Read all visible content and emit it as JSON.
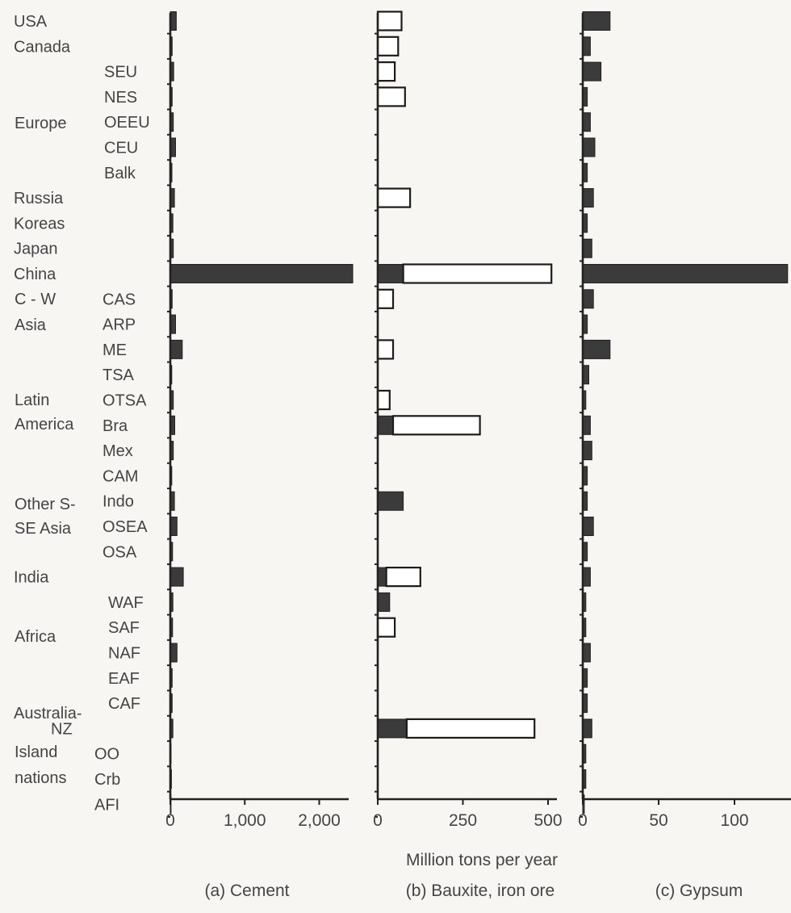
{
  "chart_data": [
    {
      "type": "bar",
      "orientation": "horizontal",
      "title": "(a) Cement",
      "xlim": [
        0,
        2450
      ],
      "xticks": [
        "0",
        "1,000",
        "2,000"
      ],
      "xtick_values": [
        0,
        1000,
        2000
      ],
      "categories": [
        "USA",
        "Canada",
        "SEU",
        "NES",
        "OEEU",
        "CEU",
        "Balk",
        "Russia",
        "Koreas",
        "Japan",
        "China",
        "CAS",
        "ARP",
        "ME",
        "TSA",
        "OTSA",
        "Bra",
        "Mex",
        "CAM",
        "Indo",
        "OSEA",
        "OSA",
        "India",
        "WAF",
        "SAF",
        "NAF",
        "EAF",
        "CAF",
        "NZ",
        "OO",
        "Crb",
        "AFI"
      ],
      "series": [
        {
          "style": "filled",
          "values": [
            80,
            25,
            45,
            25,
            40,
            70,
            22,
            55,
            35,
            40,
            2450,
            25,
            70,
            160,
            20,
            40,
            60,
            40,
            20,
            55,
            90,
            30,
            175,
            35,
            30,
            90,
            25,
            25,
            35,
            10,
            15,
            10
          ]
        }
      ],
      "grid": false
    },
    {
      "type": "bar",
      "orientation": "horizontal",
      "title": "(b) Bauxite, iron ore",
      "xlim": [
        0,
        510
      ],
      "xticks": [
        "0",
        "250",
        "500"
      ],
      "xtick_values": [
        0,
        250,
        500
      ],
      "categories": [
        "USA",
        "Canada",
        "SEU",
        "NES",
        "OEEU",
        "CEU",
        "Balk",
        "Russia",
        "Koreas",
        "Japan",
        "China",
        "CAS",
        "ARP",
        "ME",
        "TSA",
        "OTSA",
        "Bra",
        "Mex",
        "CAM",
        "Indo",
        "OSEA",
        "OSA",
        "India",
        "WAF",
        "SAF",
        "NAF",
        "EAF",
        "CAF",
        "NZ",
        "OO",
        "Crb",
        "AFI"
      ],
      "series": [
        {
          "name": "Bauxite",
          "style": "filled",
          "values": [
            0,
            0,
            0,
            0,
            0,
            0,
            0,
            0,
            0,
            0,
            75,
            0,
            0,
            0,
            0,
            0,
            45,
            0,
            0,
            75,
            0,
            0,
            25,
            35,
            0,
            0,
            0,
            0,
            85,
            0,
            0,
            0
          ]
        },
        {
          "name": "Iron ore",
          "style": "open",
          "values": [
            70,
            60,
            50,
            80,
            0,
            0,
            0,
            95,
            0,
            0,
            435,
            45,
            0,
            45,
            0,
            35,
            255,
            0,
            0,
            0,
            0,
            0,
            100,
            0,
            50,
            0,
            0,
            0,
            375,
            0,
            0,
            0
          ]
        }
      ],
      "grid": false
    },
    {
      "type": "bar",
      "orientation": "horizontal",
      "title": "(c) Gypsum",
      "xlim": [
        0,
        135
      ],
      "xticks": [
        "0",
        "50",
        "100"
      ],
      "xtick_values": [
        0,
        50,
        100
      ],
      "categories": [
        "USA",
        "Canada",
        "SEU",
        "NES",
        "OEEU",
        "CEU",
        "Balk",
        "Russia",
        "Koreas",
        "Japan",
        "China",
        "CAS",
        "ARP",
        "ME",
        "TSA",
        "OTSA",
        "Bra",
        "Mex",
        "CAM",
        "Indo",
        "OSEA",
        "OSA",
        "India",
        "WAF",
        "SAF",
        "NAF",
        "EAF",
        "CAF",
        "NZ",
        "OO",
        "Crb",
        "AFI"
      ],
      "series": [
        {
          "style": "filled",
          "values": [
            18,
            5,
            12,
            3,
            5,
            8,
            3,
            7,
            3,
            6,
            135,
            7,
            3,
            18,
            4,
            2,
            5,
            6,
            3,
            3,
            7,
            3,
            5,
            2,
            2,
            5,
            3,
            3,
            6,
            2,
            2,
            1
          ]
        }
      ],
      "grid": false
    }
  ],
  "row_labels": [
    "USA",
    "Canada",
    "SEU",
    "NES",
    "OEEU",
    "CEU",
    "Balk",
    "Russia",
    "Koreas",
    "Japan",
    "China",
    "CAS",
    "ARP",
    "ME",
    "TSA",
    "OTSA",
    "Bra",
    "Mex",
    "CAM",
    "Indo",
    "OSEA",
    "OSA",
    "India",
    "WAF",
    "SAF",
    "NAF",
    "EAF",
    "CAF",
    "NZ",
    "OO",
    "Crb",
    "AFI"
  ],
  "group_labels": [
    "Europe",
    "C - W",
    "Asia",
    "Latin",
    "America",
    "Other S-",
    "SE Asia",
    "Africa",
    "Australia-",
    "Island",
    "nations"
  ],
  "shared_xlabel": "Million tons per year"
}
